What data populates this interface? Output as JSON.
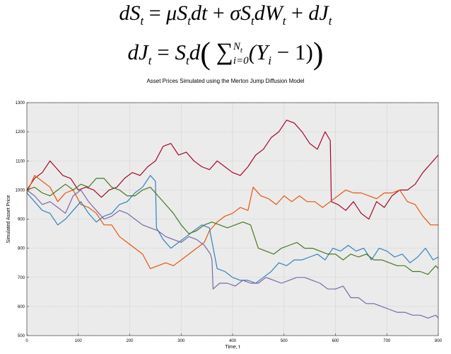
{
  "equations": {
    "line1": {
      "dS": "dS",
      "t": "t",
      "eq": "=",
      "mu": "μS",
      "dt": "dt",
      "plus": "+",
      "sigma": "σS",
      "dW": "dW",
      "plus2": "+",
      "dJ": "dJ"
    },
    "line2": {
      "dJ": "dJ",
      "t": "t",
      "eq": "=",
      "S": "S",
      "d": "d",
      "lparen": "(",
      "sum": "∑",
      "upper": "N",
      "upper_sub": "t",
      "lower": "i=0",
      "inner": "(Y",
      "i": "i",
      "minus": " − 1)",
      "rparen": ")"
    }
  },
  "chart_data": {
    "type": "line",
    "title": "Asset Prices Simulated using the Merton Jump Diffusion Model",
    "xlabel": "Time, t",
    "ylabel": "Simulated Asset Price",
    "xlim": [
      0,
      800
    ],
    "ylim": [
      500,
      1300
    ],
    "xticks": [
      0,
      100,
      200,
      300,
      400,
      500,
      600,
      700,
      800
    ],
    "yticks": [
      500,
      600,
      700,
      800,
      900,
      1000,
      1100,
      1200,
      1300
    ],
    "grid": true,
    "background": "#ebebeb",
    "series": [
      {
        "color": "#a60628",
        "x": [
          0,
          15,
          30,
          45,
          55,
          70,
          85,
          100,
          115,
          130,
          145,
          160,
          175,
          190,
          205,
          220,
          235,
          250,
          265,
          280,
          295,
          310,
          325,
          340,
          355,
          370,
          385,
          400,
          415,
          430,
          445,
          460,
          475,
          490,
          505,
          520,
          535,
          550,
          565,
          580,
          590,
          592,
          605,
          620,
          635,
          650,
          665,
          680,
          695,
          710,
          725,
          740,
          755,
          770,
          785,
          800
        ],
        "y": [
          1000,
          1040,
          1060,
          1100,
          1080,
          1050,
          1040,
          1000,
          1010,
          1000,
          975,
          1000,
          1010,
          1040,
          1060,
          1050,
          1080,
          1100,
          1150,
          1160,
          1120,
          1130,
          1100,
          1080,
          1070,
          1100,
          1080,
          1060,
          1050,
          1080,
          1120,
          1140,
          1180,
          1200,
          1240,
          1230,
          1200,
          1160,
          1140,
          1200,
          1170,
          960,
          950,
          930,
          960,
          920,
          900,
          960,
          940,
          980,
          1000,
          1000,
          1020,
          1060,
          1090,
          1120
        ]
      },
      {
        "color": "#e6550d",
        "x": [
          0,
          15,
          30,
          45,
          60,
          75,
          90,
          105,
          120,
          135,
          150,
          165,
          180,
          195,
          210,
          225,
          240,
          255,
          270,
          285,
          300,
          315,
          330,
          345,
          355,
          370,
          385,
          400,
          415,
          430,
          440,
          455,
          470,
          485,
          500,
          515,
          530,
          545,
          560,
          575,
          590,
          605,
          620,
          635,
          650,
          665,
          680,
          695,
          710,
          725,
          740,
          755,
          770,
          785,
          800
        ],
        "y": [
          990,
          1050,
          1030,
          1010,
          960,
          990,
          1000,
          950,
          940,
          920,
          880,
          880,
          840,
          820,
          800,
          780,
          730,
          740,
          750,
          740,
          760,
          780,
          800,
          820,
          860,
          890,
          910,
          920,
          940,
          930,
          1010,
          980,
          970,
          950,
          980,
          960,
          980,
          960,
          960,
          940,
          960,
          980,
          1000,
          990,
          990,
          980,
          970,
          990,
          990,
          1000,
          960,
          950,
          910,
          880,
          880
        ]
      },
      {
        "color": "#3182bd",
        "x": [
          0,
          15,
          30,
          45,
          60,
          75,
          90,
          105,
          120,
          135,
          150,
          165,
          180,
          195,
          210,
          225,
          240,
          250,
          252,
          265,
          280,
          295,
          310,
          325,
          340,
          355,
          357,
          370,
          385,
          400,
          415,
          430,
          445,
          460,
          475,
          490,
          505,
          520,
          535,
          550,
          565,
          580,
          595,
          610,
          625,
          640,
          655,
          670,
          685,
          700,
          715,
          730,
          745,
          760,
          775,
          790,
          800
        ],
        "y": [
          990,
          960,
          930,
          920,
          880,
          900,
          930,
          960,
          920,
          890,
          910,
          920,
          950,
          960,
          990,
          1010,
          1050,
          1030,
          870,
          830,
          800,
          820,
          840,
          860,
          880,
          870,
          850,
          730,
          720,
          700,
          690,
          690,
          680,
          700,
          720,
          750,
          740,
          760,
          760,
          770,
          780,
          760,
          800,
          790,
          810,
          790,
          800,
          760,
          800,
          790,
          770,
          780,
          750,
          770,
          800,
          760,
          770
        ]
      },
      {
        "color": "#467821",
        "x": [
          0,
          15,
          30,
          45,
          60,
          75,
          90,
          105,
          120,
          135,
          150,
          165,
          180,
          195,
          210,
          225,
          240,
          255,
          270,
          285,
          300,
          315,
          330,
          345,
          360,
          375,
          390,
          405,
          420,
          435,
          450,
          465,
          480,
          495,
          510,
          525,
          540,
          555,
          570,
          585,
          600,
          615,
          630,
          645,
          660,
          675,
          690,
          705,
          720,
          735,
          750,
          765,
          780,
          795,
          800
        ],
        "y": [
          1000,
          1010,
          990,
          980,
          1000,
          1020,
          1000,
          1020,
          1010,
          1040,
          1040,
          1010,
          1000,
          980,
          980,
          1000,
          1010,
          980,
          950,
          920,
          880,
          850,
          860,
          880,
          890,
          880,
          870,
          880,
          890,
          880,
          800,
          790,
          780,
          800,
          810,
          820,
          800,
          800,
          790,
          780,
          780,
          760,
          780,
          770,
          780,
          760,
          760,
          750,
          740,
          740,
          720,
          720,
          710,
          740,
          730
        ]
      },
      {
        "color": "#7a68a6",
        "x": [
          0,
          15,
          30,
          45,
          60,
          75,
          90,
          105,
          120,
          135,
          150,
          165,
          180,
          195,
          210,
          225,
          240,
          255,
          270,
          285,
          300,
          315,
          330,
          345,
          357,
          360,
          362,
          375,
          390,
          405,
          420,
          435,
          450,
          465,
          480,
          495,
          510,
          525,
          540,
          555,
          570,
          585,
          600,
          615,
          630,
          645,
          660,
          675,
          690,
          705,
          720,
          735,
          750,
          765,
          780,
          795,
          800
        ],
        "y": [
          1000,
          980,
          950,
          960,
          940,
          920,
          980,
          1000,
          960,
          930,
          900,
          910,
          930,
          920,
          900,
          880,
          870,
          860,
          840,
          830,
          820,
          840,
          830,
          810,
          780,
          760,
          660,
          680,
          680,
          670,
          690,
          680,
          680,
          700,
          690,
          680,
          690,
          700,
          700,
          690,
          680,
          660,
          660,
          670,
          630,
          630,
          610,
          610,
          600,
          590,
          580,
          580,
          570,
          570,
          560,
          570,
          560
        ]
      }
    ]
  }
}
